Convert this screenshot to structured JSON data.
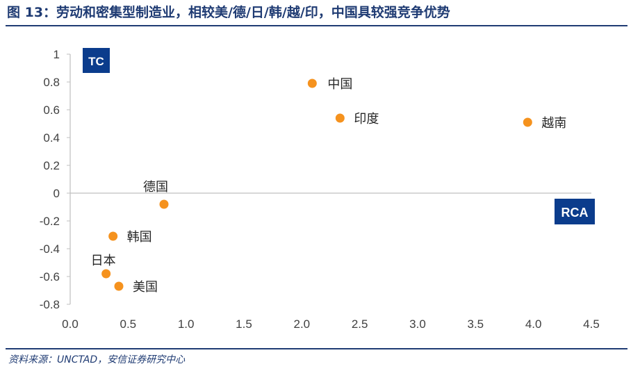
{
  "header": {
    "title": "图 13：劳动和密集型制造业，相较美/德/日/韩/越/印，中国具较强竞争优势"
  },
  "footer": {
    "source": "资料来源：UNCTAD，安信证券研究中心"
  },
  "colors": {
    "title": "#1f3b73",
    "point": "#f5921e",
    "badge": "#0b3c8c",
    "axis": "#bfbfbf"
  },
  "chart_data": {
    "type": "scatter",
    "title": "",
    "xlabel": "RCA",
    "ylabel": "TC",
    "xlim": [
      0,
      4.5
    ],
    "ylim": [
      -0.8,
      1
    ],
    "x_ticks": [
      "0.0",
      "0.5",
      "1.0",
      "1.5",
      "2.0",
      "2.5",
      "3.0",
      "3.5",
      "4.0",
      "4.5"
    ],
    "y_ticks": [
      "1",
      "0.8",
      "0.6",
      "0.4",
      "0.2",
      "0",
      "-0.2",
      "-0.4",
      "-0.6",
      "-0.8"
    ],
    "grid": false,
    "points": [
      {
        "label": "中国",
        "x": 2.09,
        "y": 0.79
      },
      {
        "label": "印度",
        "x": 2.33,
        "y": 0.54
      },
      {
        "label": "越南",
        "x": 3.95,
        "y": 0.51
      },
      {
        "label": "德国",
        "x": 0.81,
        "y": -0.08
      },
      {
        "label": "韩国",
        "x": 0.37,
        "y": -0.31
      },
      {
        "label": "日本",
        "x": 0.31,
        "y": -0.58
      },
      {
        "label": "美国",
        "x": 0.42,
        "y": -0.67
      }
    ]
  }
}
